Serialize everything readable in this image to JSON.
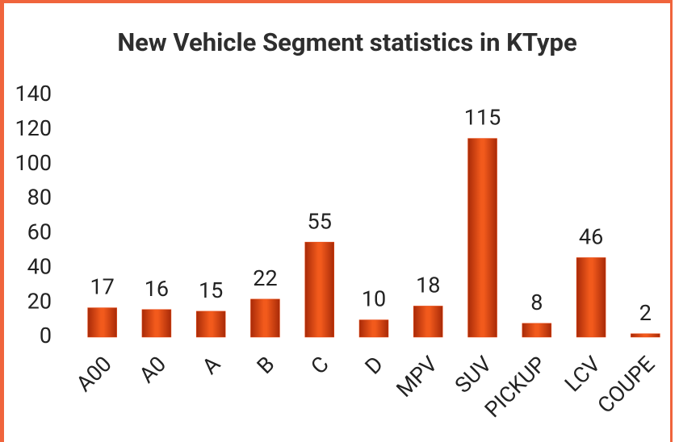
{
  "chart_data": {
    "type": "bar",
    "title": "New Vehicle Segment statistics in KType",
    "categories": [
      "A00",
      "A0",
      "A",
      "B",
      "C",
      "D",
      "MPV",
      "SUV",
      "PICKUP",
      "LCV",
      "COUPE"
    ],
    "values": [
      17,
      16,
      15,
      22,
      55,
      10,
      18,
      115,
      8,
      46,
      2
    ],
    "color": "#e8430c",
    "ylim": [
      0,
      140
    ],
    "yticks": [
      0,
      20,
      40,
      60,
      80,
      100,
      120,
      140
    ],
    "grid": false
  }
}
